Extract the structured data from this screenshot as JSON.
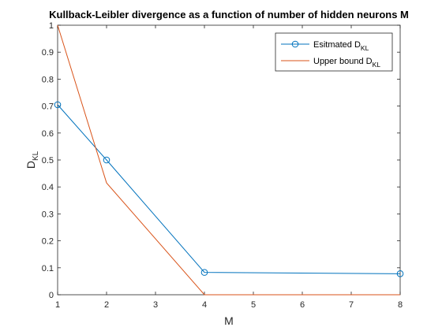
{
  "chart_data": {
    "type": "line",
    "title": "Kullback-Leibler divergence as a function of number of hidden neurons M",
    "xlabel": "M",
    "ylabel": {
      "main": "D",
      "sub": "KL"
    },
    "xlim": [
      1,
      8
    ],
    "ylim": [
      0,
      1
    ],
    "xticks": [
      1,
      2,
      3,
      4,
      5,
      6,
      7,
      8
    ],
    "yticks": [
      0,
      0.1,
      0.2,
      0.3,
      0.4,
      0.5,
      0.6,
      0.7,
      0.8,
      0.9,
      1
    ],
    "grid": false,
    "legend_position": "top-right",
    "series": [
      {
        "name": {
          "main": "Esitmated D",
          "sub": "KL"
        },
        "x": [
          1,
          2,
          4,
          8
        ],
        "y": [
          0.705,
          0.5,
          0.083,
          0.078
        ],
        "color": "#0072BD",
        "marker": "circle"
      },
      {
        "name": {
          "main": "Upper bound D",
          "sub": "KL"
        },
        "x": [
          1,
          2,
          4,
          8
        ],
        "y": [
          1.0,
          0.415,
          0.0,
          0.0
        ],
        "color": "#D95319",
        "marker": "none"
      }
    ]
  }
}
